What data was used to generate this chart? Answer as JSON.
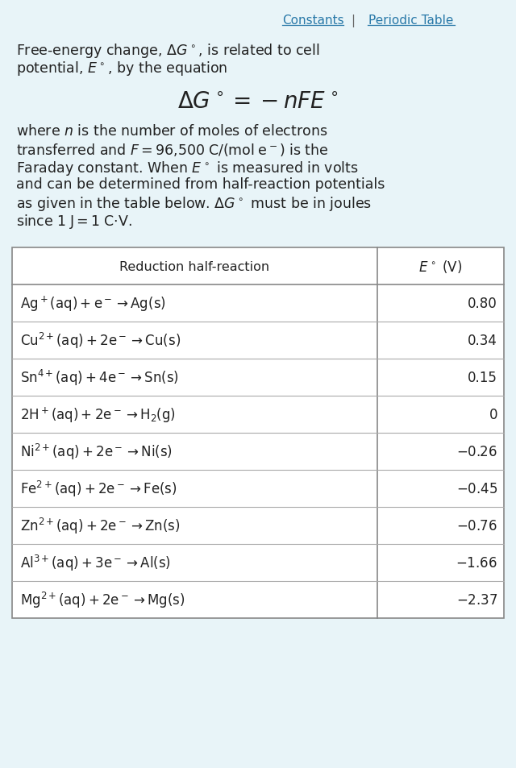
{
  "bg_color": "#e8f4f8",
  "text_color": "#222222",
  "link_color": "#2878a8",
  "figsize": [
    6.4,
    9.54
  ],
  "dpi": 100,
  "constants_label": "Constants",
  "periodic_label": "Periodic Table",
  "table_rows": [
    [
      "$\\mathrm{Ag}^+(\\mathrm{aq}) + \\mathrm{e}^- \\rightarrow \\mathrm{Ag(s)}$",
      "0.80"
    ],
    [
      "$\\mathrm{Cu}^{2+}(\\mathrm{aq}) + 2\\mathrm{e}^- \\rightarrow \\mathrm{Cu(s)}$",
      "0.34"
    ],
    [
      "$\\mathrm{Sn}^{4+}(\\mathrm{aq}) + 4\\mathrm{e}^- \\rightarrow \\mathrm{Sn(s)}$",
      "0.15"
    ],
    [
      "$2\\mathrm{H}^+(\\mathrm{aq}) + 2\\mathrm{e}^- \\rightarrow \\mathrm{H}_2(\\mathrm{g})$",
      "0"
    ],
    [
      "$\\mathrm{Ni}^{2+}(\\mathrm{aq}) + 2\\mathrm{e}^- \\rightarrow \\mathrm{Ni(s)}$",
      "$-0.26$"
    ],
    [
      "$\\mathrm{Fe}^{2+}(\\mathrm{aq}) + 2\\mathrm{e}^- \\rightarrow \\mathrm{Fe(s)}$",
      "$-0.45$"
    ],
    [
      "$\\mathrm{Zn}^{2+}(\\mathrm{aq}) + 2\\mathrm{e}^- \\rightarrow \\mathrm{Zn(s)}$",
      "$-0.76$"
    ],
    [
      "$\\mathrm{Al}^{3+}(\\mathrm{aq}) + 3\\mathrm{e}^- \\rightarrow \\mathrm{Al(s)}$",
      "$-1.66$"
    ],
    [
      "$\\mathrm{Mg}^{2+}(\\mathrm{aq}) + 2\\mathrm{e}^- \\rightarrow \\mathrm{Mg(s)}$",
      "$-2.37$"
    ]
  ]
}
